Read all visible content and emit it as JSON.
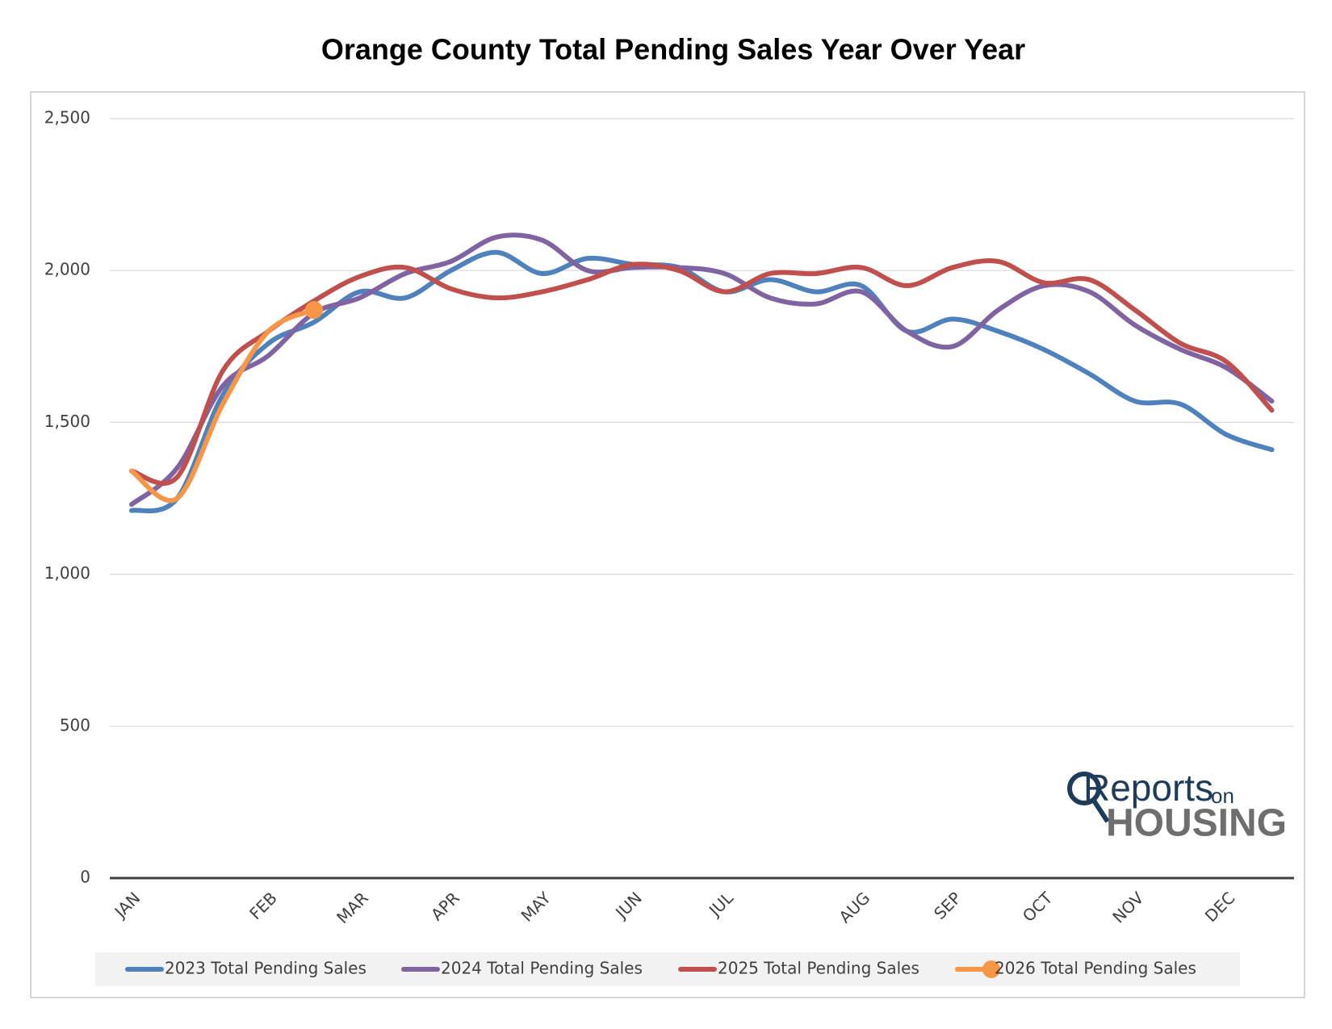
{
  "chart_data": {
    "type": "line",
    "title": "Orange County Total Pending Sales Year Over Year",
    "categories": [
      "JAN",
      null,
      null,
      "FEB",
      null,
      "MAR",
      null,
      "APR",
      null,
      "MAY",
      null,
      "JUN",
      null,
      "JUL",
      null,
      null,
      "AUG",
      null,
      "SEP",
      null,
      "OCT",
      null,
      "NOV",
      null,
      "DEC",
      null
    ],
    "series": [
      {
        "name": "2023 Total Pending Sales",
        "color": "#4f81bd",
        "values": [
          1210,
          1250,
          1590,
          1760,
          1830,
          1930,
          1910,
          2000,
          2060,
          1990,
          2040,
          2020,
          2010,
          1930,
          1970,
          1930,
          1950,
          1800,
          1840,
          1800,
          1740,
          1660,
          1570,
          1560,
          1460,
          1410
        ]
      },
      {
        "name": "2024 Total Pending Sales",
        "color": "#8064a2",
        "values": [
          1230,
          1350,
          1620,
          1720,
          1860,
          1910,
          1990,
          2030,
          2110,
          2100,
          2000,
          2010,
          2010,
          1990,
          1910,
          1890,
          1930,
          1800,
          1750,
          1870,
          1950,
          1930,
          1820,
          1740,
          1680,
          1570
        ]
      },
      {
        "name": "2025 Total Pending Sales",
        "color": "#c0504d",
        "values": [
          1340,
          1320,
          1670,
          1800,
          1900,
          1980,
          2010,
          1940,
          1910,
          1930,
          1970,
          2020,
          2000,
          1930,
          1990,
          1990,
          2010,
          1950,
          2010,
          2030,
          1960,
          1970,
          1870,
          1760,
          1700,
          1540
        ]
      },
      {
        "name": "2026 Total Pending Sales",
        "color": "#f79646",
        "marker": "last",
        "values": [
          1340,
          1250,
          1560,
          1800,
          1870,
          null,
          null,
          null,
          null,
          null,
          null,
          null,
          null,
          null,
          null,
          null,
          null,
          null,
          null,
          null,
          null,
          null,
          null,
          null,
          null,
          null
        ]
      }
    ],
    "ylim": [
      0,
      2500
    ],
    "yticks": [
      0,
      {
        "value": 500,
        "label": "500"
      },
      {
        "value": 1000,
        "label": "1,000"
      },
      {
        "value": 1500,
        "label": "1,500"
      },
      {
        "value": 2000,
        "label": "2,000"
      },
      {
        "value": 2500,
        "label": "2,500"
      }
    ],
    "grid": true,
    "legend": "bottom",
    "logo": {
      "brand": "Reports",
      "small": "on",
      "sub": "HOUSING"
    }
  }
}
